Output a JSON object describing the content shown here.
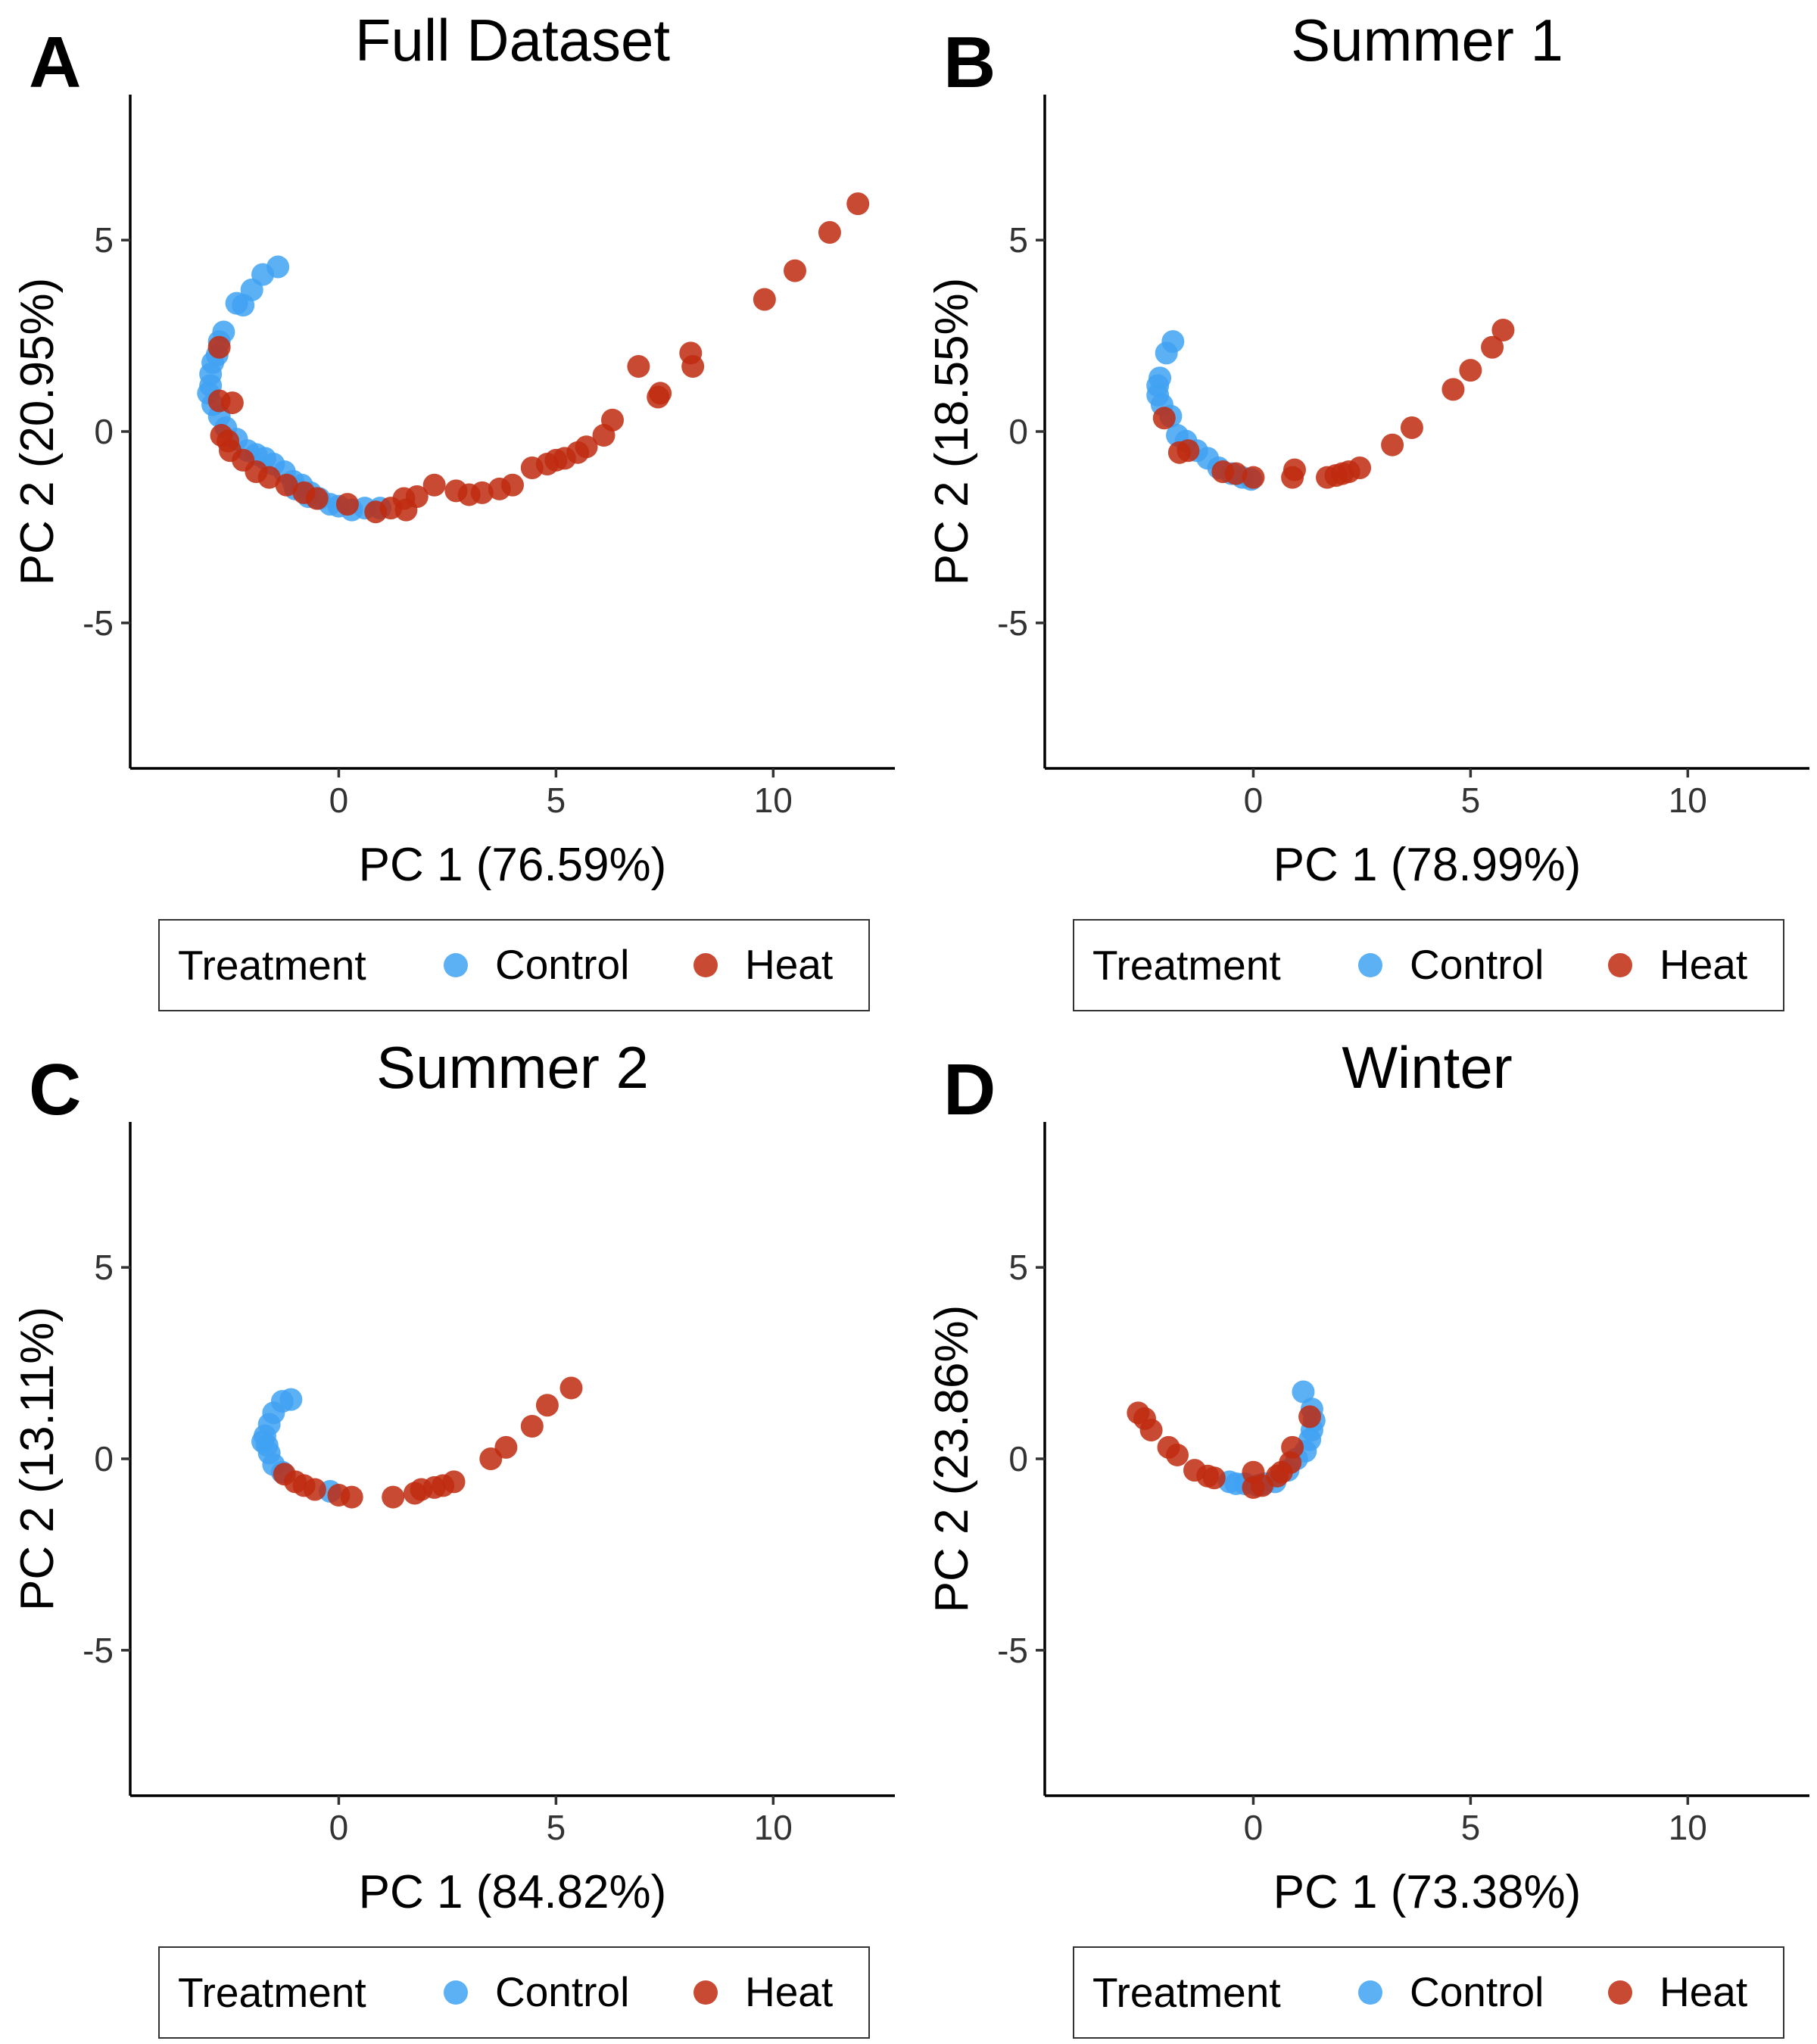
{
  "colors": {
    "Control": "#3fa2f2",
    "Heat": "#bf2a0f"
  },
  "legend": {
    "title": "Treatment",
    "entries": [
      "Control",
      "Heat"
    ]
  },
  "chart_data": [
    {
      "type": "scatter",
      "panel": "A",
      "title": "Full Dataset",
      "xlabel": "PC 1 (76.59%)",
      "ylabel": "PC 2 (20.95%)",
      "xlim": [
        -4.8,
        12.8
      ],
      "ylim": [
        -8.8,
        8.8
      ],
      "xticks": [
        0,
        5,
        10
      ],
      "yticks": [
        -5,
        0,
        5
      ],
      "grid": false,
      "legend_position": "bottom",
      "series": [
        {
          "name": "Control",
          "points": [
            [
              -1.4,
              4.3
            ],
            [
              -1.75,
              4.1
            ],
            [
              -2.0,
              3.7
            ],
            [
              -2.2,
              3.3
            ],
            [
              -2.35,
              3.35
            ],
            [
              -2.65,
              2.6
            ],
            [
              -2.75,
              2.35
            ],
            [
              -2.8,
              2.0
            ],
            [
              -2.9,
              1.8
            ],
            [
              -2.95,
              1.5
            ],
            [
              -2.95,
              1.2
            ],
            [
              -3.0,
              1.0
            ],
            [
              -2.9,
              0.7
            ],
            [
              -2.75,
              0.4
            ],
            [
              -2.6,
              0.1
            ],
            [
              -2.35,
              -0.2
            ],
            [
              -2.1,
              -0.5
            ],
            [
              -1.9,
              -0.6
            ],
            [
              -1.7,
              -0.7
            ],
            [
              -1.5,
              -0.85
            ],
            [
              -1.25,
              -1.05
            ],
            [
              -1.05,
              -1.3
            ],
            [
              -0.85,
              -1.4
            ],
            [
              -0.65,
              -1.6
            ],
            [
              -0.45,
              -1.75
            ],
            [
              -0.2,
              -1.9
            ],
            [
              0.0,
              -1.95
            ],
            [
              0.3,
              -2.05
            ],
            [
              0.6,
              -2.0
            ],
            [
              0.95,
              -2.0
            ],
            [
              -1.0,
              -1.5
            ],
            [
              -0.7,
              -1.7
            ]
          ]
        },
        {
          "name": "Heat",
          "points": [
            [
              11.95,
              5.95
            ],
            [
              11.3,
              5.2
            ],
            [
              10.5,
              4.2
            ],
            [
              9.8,
              3.45
            ],
            [
              8.1,
              2.05
            ],
            [
              8.15,
              1.7
            ],
            [
              6.9,
              1.7
            ],
            [
              7.4,
              1.0
            ],
            [
              7.35,
              0.9
            ],
            [
              6.3,
              0.3
            ],
            [
              6.1,
              -0.1
            ],
            [
              5.7,
              -0.4
            ],
            [
              5.5,
              -0.55
            ],
            [
              5.2,
              -0.7
            ],
            [
              5.0,
              -0.75
            ],
            [
              4.8,
              -0.85
            ],
            [
              4.45,
              -0.95
            ],
            [
              4.0,
              -1.4
            ],
            [
              3.7,
              -1.5
            ],
            [
              3.3,
              -1.6
            ],
            [
              3.0,
              -1.65
            ],
            [
              2.7,
              -1.55
            ],
            [
              2.2,
              -1.4
            ],
            [
              1.8,
              -1.7
            ],
            [
              1.5,
              -1.75
            ],
            [
              1.55,
              -2.05
            ],
            [
              1.2,
              -2.0
            ],
            [
              0.85,
              -2.1
            ],
            [
              0.2,
              -1.9
            ],
            [
              -0.5,
              -1.75
            ],
            [
              -0.8,
              -1.6
            ],
            [
              -1.2,
              -1.4
            ],
            [
              -1.6,
              -1.2
            ],
            [
              -1.9,
              -1.05
            ],
            [
              -2.2,
              -0.75
            ],
            [
              -2.5,
              -0.5
            ],
            [
              -2.7,
              -0.1
            ],
            [
              -2.45,
              0.75
            ],
            [
              -2.75,
              0.8
            ],
            [
              -2.75,
              2.2
            ],
            [
              -2.55,
              -0.25
            ]
          ]
        }
      ]
    },
    {
      "type": "scatter",
      "panel": "B",
      "title": "Summer 1",
      "xlabel": "PC 1 (78.99%)",
      "ylabel": "PC 2 (18.55%)",
      "xlim": [
        -4.8,
        12.8
      ],
      "ylim": [
        -8.8,
        8.8
      ],
      "xticks": [
        0,
        5,
        10
      ],
      "yticks": [
        -5,
        0,
        5
      ],
      "grid": false,
      "legend_position": "bottom",
      "series": [
        {
          "name": "Control",
          "points": [
            [
              -1.85,
              2.35
            ],
            [
              -2.0,
              2.05
            ],
            [
              -2.15,
              1.4
            ],
            [
              -2.2,
              1.2
            ],
            [
              -2.2,
              0.95
            ],
            [
              -2.1,
              0.7
            ],
            [
              -1.9,
              0.4
            ],
            [
              -1.75,
              -0.1
            ],
            [
              -1.55,
              -0.25
            ],
            [
              -1.3,
              -0.5
            ],
            [
              -1.05,
              -0.7
            ],
            [
              -0.8,
              -0.95
            ],
            [
              -0.5,
              -1.1
            ],
            [
              -0.25,
              -1.2
            ],
            [
              -0.05,
              -1.25
            ]
          ]
        },
        {
          "name": "Heat",
          "points": [
            [
              5.75,
              2.65
            ],
            [
              5.5,
              2.2
            ],
            [
              5.0,
              1.6
            ],
            [
              4.6,
              1.1
            ],
            [
              3.65,
              0.1
            ],
            [
              3.2,
              -0.35
            ],
            [
              2.45,
              -0.95
            ],
            [
              2.2,
              -1.05
            ],
            [
              2.05,
              -1.1
            ],
            [
              1.9,
              -1.15
            ],
            [
              1.7,
              -1.2
            ],
            [
              0.9,
              -1.2
            ],
            [
              0.95,
              -1.0
            ],
            [
              0.0,
              -1.2
            ],
            [
              -0.4,
              -1.1
            ],
            [
              -0.7,
              -1.05
            ],
            [
              -1.5,
              -0.5
            ],
            [
              -1.7,
              -0.55
            ],
            [
              -2.05,
              0.35
            ]
          ]
        }
      ]
    },
    {
      "type": "scatter",
      "panel": "C",
      "title": "Summer 2",
      "xlabel": "PC 1 (84.82%)",
      "ylabel": "PC 2 (13.11%)",
      "xlim": [
        -4.8,
        12.8
      ],
      "ylim": [
        -8.8,
        8.8
      ],
      "xticks": [
        0,
        5,
        10
      ],
      "yticks": [
        -5,
        0,
        5
      ],
      "grid": false,
      "legend_position": "bottom",
      "series": [
        {
          "name": "Control",
          "points": [
            [
              -1.1,
              1.55
            ],
            [
              -1.3,
              1.5
            ],
            [
              -1.5,
              1.2
            ],
            [
              -1.6,
              0.9
            ],
            [
              -1.7,
              0.6
            ],
            [
              -1.65,
              0.35
            ],
            [
              -1.6,
              0.15
            ],
            [
              -1.5,
              -0.15
            ],
            [
              -1.3,
              -0.35
            ],
            [
              -0.2,
              -0.85
            ],
            [
              -1.75,
              0.45
            ]
          ]
        },
        {
          "name": "Heat",
          "points": [
            [
              5.35,
              1.85
            ],
            [
              4.8,
              1.4
            ],
            [
              4.45,
              0.85
            ],
            [
              3.85,
              0.3
            ],
            [
              3.5,
              0.0
            ],
            [
              2.65,
              -0.6
            ],
            [
              2.4,
              -0.7
            ],
            [
              2.2,
              -0.75
            ],
            [
              1.9,
              -0.8
            ],
            [
              1.75,
              -0.9
            ],
            [
              1.25,
              -1.0
            ],
            [
              0.3,
              -1.0
            ],
            [
              0.0,
              -0.95
            ],
            [
              -0.55,
              -0.8
            ],
            [
              -0.8,
              -0.7
            ],
            [
              -1.0,
              -0.6
            ],
            [
              -1.25,
              -0.4
            ]
          ]
        }
      ]
    },
    {
      "type": "scatter",
      "panel": "D",
      "title": "Winter",
      "xlabel": "PC 1 (73.38%)",
      "ylabel": "PC 2 (23.86%)",
      "xlim": [
        -4.8,
        12.8
      ],
      "ylim": [
        -8.8,
        8.8
      ],
      "xticks": [
        0,
        5,
        10
      ],
      "yticks": [
        -5,
        0,
        5
      ],
      "grid": false,
      "legend_position": "bottom",
      "series": [
        {
          "name": "Control",
          "points": [
            [
              1.15,
              1.75
            ],
            [
              1.35,
              1.3
            ],
            [
              1.4,
              1.0
            ],
            [
              1.35,
              0.75
            ],
            [
              1.3,
              0.5
            ],
            [
              1.2,
              0.2
            ],
            [
              1.0,
              0.0
            ],
            [
              0.8,
              -0.3
            ],
            [
              0.5,
              -0.6
            ],
            [
              0.25,
              -0.65
            ],
            [
              -0.2,
              -0.65
            ],
            [
              -0.4,
              -0.65
            ],
            [
              -0.55,
              -0.6
            ],
            [
              0.1,
              -0.7
            ]
          ]
        },
        {
          "name": "Heat",
          "points": [
            [
              -2.65,
              1.2
            ],
            [
              -2.5,
              1.05
            ],
            [
              -2.35,
              0.75
            ],
            [
              -1.95,
              0.3
            ],
            [
              -1.75,
              0.1
            ],
            [
              -1.35,
              -0.3
            ],
            [
              -1.05,
              -0.45
            ],
            [
              -0.9,
              -0.5
            ],
            [
              0.0,
              -0.75
            ],
            [
              0.2,
              -0.7
            ],
            [
              0.0,
              -0.35
            ],
            [
              0.55,
              -0.45
            ],
            [
              0.65,
              -0.35
            ],
            [
              0.85,
              -0.1
            ],
            [
              0.9,
              0.3
            ],
            [
              1.3,
              1.1
            ]
          ]
        }
      ]
    }
  ]
}
